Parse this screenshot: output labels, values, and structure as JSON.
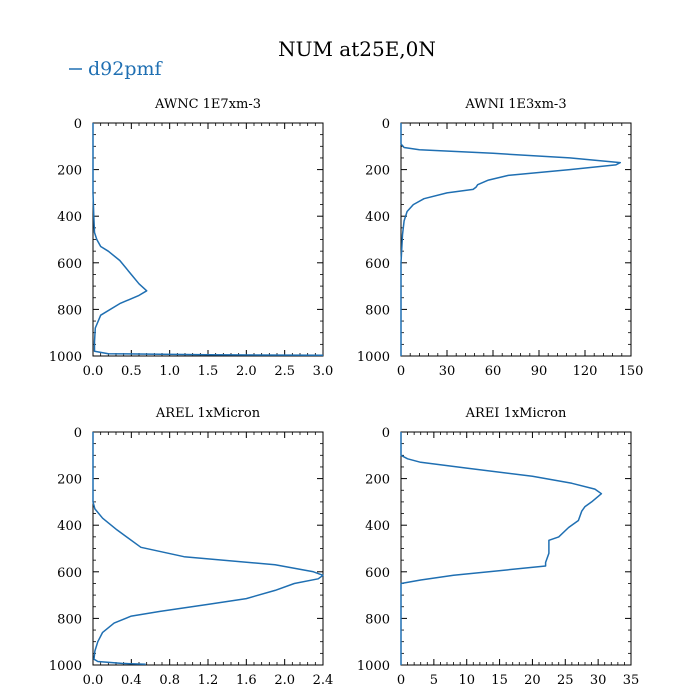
{
  "figure": {
    "title": "NUM at25E,0N",
    "legend": {
      "label": "d92pmf",
      "color": "#1f6fb2",
      "placement": "top-left"
    }
  },
  "chart_data": [
    {
      "type": "line",
      "title": "AWNC  1E7xm-3",
      "xlim": [
        0,
        3.0
      ],
      "ylim": [
        1000,
        0
      ],
      "xticks": [
        0,
        0.5,
        1.0,
        1.5,
        2.0,
        2.5,
        3.0
      ],
      "xtick_labels": [
        "0.0",
        "0.5",
        "1.0",
        "1.5",
        "2.0",
        "2.5",
        "3.0"
      ],
      "yticks": [
        0,
        200,
        400,
        600,
        800,
        1000
      ],
      "ytick_labels": [
        "0",
        "200",
        "400",
        "600",
        "800",
        "1000"
      ],
      "series": [
        {
          "name": "d92pmf",
          "x": [
            0,
            0,
            0.01,
            0.02,
            0.05,
            0.1,
            0.2,
            0.35,
            0.5,
            0.6,
            0.7,
            0.6,
            0.35,
            0.1,
            0.03,
            0.02,
            0.02,
            0.2,
            1.5,
            3.0
          ],
          "y": [
            0,
            300,
            400,
            470,
            500,
            530,
            550,
            590,
            650,
            690,
            720,
            740,
            775,
            825,
            880,
            940,
            980,
            990,
            995,
            997
          ]
        }
      ]
    },
    {
      "type": "line",
      "title": "AWNI  1E3xm-3",
      "xlim": [
        0,
        150
      ],
      "ylim": [
        1000,
        0
      ],
      "xticks": [
        0,
        30,
        60,
        90,
        120,
        150
      ],
      "xtick_labels": [
        "0",
        "30",
        "60",
        "90",
        "120",
        "150"
      ],
      "yticks": [
        0,
        200,
        400,
        600,
        800,
        1000
      ],
      "ytick_labels": [
        "0",
        "200",
        "400",
        "600",
        "800",
        "1000"
      ],
      "series": [
        {
          "name": "d92pmf",
          "x": [
            0,
            0,
            2,
            12,
            60,
            110,
            143,
            140,
            110,
            70,
            57,
            50,
            49,
            47,
            30,
            15,
            8,
            4,
            2,
            1,
            0,
            0
          ],
          "y": [
            0,
            90,
            105,
            115,
            130,
            150,
            170,
            180,
            200,
            225,
            245,
            265,
            275,
            285,
            300,
            325,
            350,
            380,
            420,
            480,
            600,
            1000
          ]
        }
      ]
    },
    {
      "type": "line",
      "title": "AREL  1xMicron",
      "xlim": [
        0,
        2.4
      ],
      "ylim": [
        1000,
        0
      ],
      "xticks": [
        0,
        0.4,
        0.8,
        1.2,
        1.6,
        2.0,
        2.4
      ],
      "xtick_labels": [
        "0.0",
        "0.4",
        "0.8",
        "1.2",
        "1.6",
        "2.0",
        "2.4"
      ],
      "yticks": [
        0,
        200,
        400,
        600,
        800,
        1000
      ],
      "ytick_labels": [
        "0",
        "200",
        "400",
        "600",
        "800",
        "1000"
      ],
      "series": [
        {
          "name": "d92pmf",
          "x": [
            0,
            0,
            0.02,
            0.1,
            0.25,
            0.5,
            0.95,
            1.9,
            2.3,
            2.4,
            2.35,
            2.1,
            1.9,
            1.6,
            1.2,
            0.7,
            0.4,
            0.22,
            0.1,
            0.05,
            0.02,
            0.01,
            0.05,
            0.3,
            0.55
          ],
          "y": [
            0,
            300,
            330,
            370,
            420,
            495,
            535,
            570,
            600,
            615,
            630,
            650,
            680,
            715,
            740,
            770,
            790,
            820,
            860,
            900,
            940,
            975,
            985,
            993,
            997
          ]
        }
      ]
    },
    {
      "type": "line",
      "title": "AREI  1xMicron",
      "xlim": [
        0,
        35
      ],
      "ylim": [
        1000,
        0
      ],
      "xticks": [
        0,
        5,
        10,
        15,
        20,
        25,
        30,
        35
      ],
      "xtick_labels": [
        "0",
        "5",
        "10",
        "15",
        "20",
        "25",
        "30",
        "35"
      ],
      "yticks": [
        0,
        200,
        400,
        600,
        800,
        1000
      ],
      "ytick_labels": [
        "0",
        "200",
        "400",
        "600",
        "800",
        "1000"
      ],
      "series": [
        {
          "name": "d92pmf",
          "x": [
            0,
            0,
            1,
            3,
            10,
            20,
            26,
            29.5,
            30.5,
            29,
            28,
            27.5,
            27,
            25.5,
            24,
            22.5,
            22.5,
            22,
            22,
            8,
            3,
            0,
            0
          ],
          "y": [
            0,
            100,
            115,
            130,
            155,
            190,
            220,
            245,
            265,
            300,
            320,
            340,
            380,
            410,
            450,
            465,
            520,
            560,
            575,
            615,
            635,
            650,
            1000
          ]
        }
      ]
    }
  ]
}
